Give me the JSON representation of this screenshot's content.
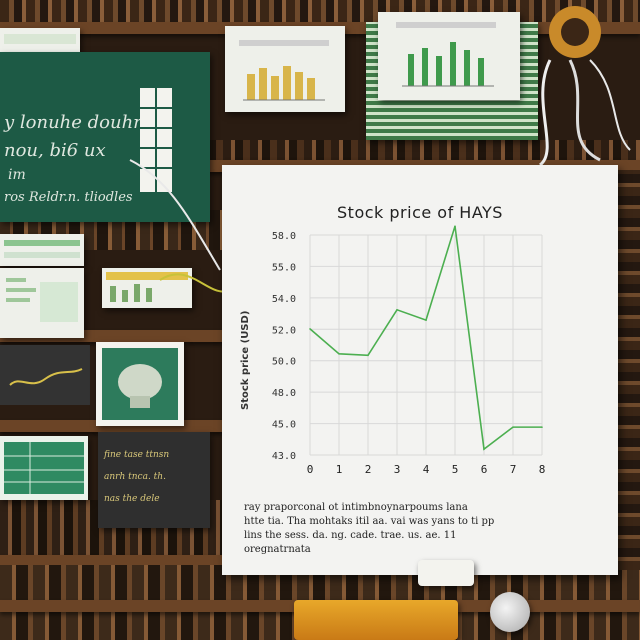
{
  "chart_data": {
    "type": "line",
    "title": "Stock price of HAYS",
    "ylabel": "Stock price (USD)",
    "xlabel": "",
    "x": [
      "0",
      "1",
      "2",
      "3",
      "4",
      "5",
      "6",
      "7",
      "8"
    ],
    "y_ticks": [
      "43.0",
      "45.0",
      "48.0",
      "50.0",
      "52.0",
      "54.0",
      "55.0",
      "58.0"
    ],
    "ylim": [
      43,
      58
    ],
    "grid": true,
    "series": [
      {
        "name": "",
        "color": "#4caf50",
        "values": [
          51.6,
          49.9,
          49.8,
          52.9,
          52.2,
          58.6,
          43.4,
          44.9,
          44.9
        ]
      }
    ]
  },
  "caption_lines": [
    "ray praporconal ot intimbnoynarpoums lana",
    "htte tia. Tha mohtaks itil aa. vai was yans to ti pp",
    "lins the sess. da. ng. cade. trae. us. ae. 11",
    "oregnatrnata"
  ],
  "notes": {
    "board_lines": [
      "y lonuhe douhre",
      "nou, bi6 ux",
      "im",
      "ros Reldr.n. tliodles"
    ],
    "small_lines": [
      "fine tase ttnsn",
      "anrh tnca. th.",
      "nas the dele"
    ]
  },
  "colors": {
    "shelf": "#6b4426",
    "board": "#1d5a45",
    "paper": "#f3f3f1",
    "line": "#4caf50"
  }
}
